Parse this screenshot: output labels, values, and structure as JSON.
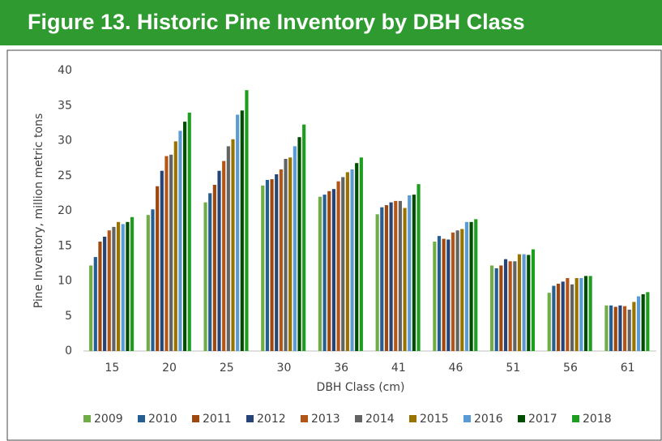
{
  "chart_data": {
    "type": "bar",
    "title": "Figure 13. Historic Pine Inventory by DBH Class",
    "x_label": "DBH Class (cm)",
    "y_label": "Pine Inventory, million metric tons",
    "categories": [
      "15",
      "20",
      "25",
      "30",
      "36",
      "41",
      "46",
      "51",
      "56",
      "61"
    ],
    "ylim": [
      0,
      40
    ],
    "yticks": [
      0,
      5,
      10,
      15,
      20,
      25,
      30,
      35,
      40
    ],
    "grid": false,
    "series": [
      {
        "name": "2009",
        "color": "#70ad47",
        "values": [
          12.2,
          19.4,
          21.2,
          23.6,
          22.0,
          19.5,
          15.6,
          12.2,
          8.3,
          6.5
        ]
      },
      {
        "name": "2010",
        "color": "#255e91",
        "values": [
          13.4,
          20.2,
          22.5,
          24.4,
          22.3,
          20.5,
          16.4,
          11.8,
          9.3,
          6.5
        ]
      },
      {
        "name": "2011",
        "color": "#9e480e",
        "values": [
          15.6,
          23.5,
          23.7,
          24.5,
          22.8,
          20.8,
          16.0,
          12.2,
          9.6,
          6.3
        ]
      },
      {
        "name": "2012",
        "color": "#264478",
        "values": [
          16.3,
          25.7,
          25.7,
          25.2,
          23.1,
          21.2,
          15.9,
          13.1,
          9.9,
          6.5
        ]
      },
      {
        "name": "2013",
        "color": "#b35517",
        "values": [
          17.2,
          27.8,
          27.1,
          25.9,
          24.2,
          21.4,
          16.9,
          12.8,
          10.4,
          6.4
        ]
      },
      {
        "name": "2014",
        "color": "#636363",
        "values": [
          17.7,
          28.0,
          29.2,
          27.4,
          24.8,
          21.4,
          17.2,
          12.8,
          9.5,
          5.9
        ]
      },
      {
        "name": "2015",
        "color": "#997300",
        "values": [
          18.4,
          29.9,
          30.2,
          27.6,
          25.5,
          20.4,
          17.4,
          13.8,
          10.4,
          7.0
        ]
      },
      {
        "name": "2016",
        "color": "#5b9bd5",
        "values": [
          18.1,
          31.4,
          33.7,
          29.2,
          25.9,
          22.2,
          18.4,
          13.8,
          10.4,
          7.8
        ]
      },
      {
        "name": "2017",
        "color": "#004d00",
        "values": [
          18.4,
          32.7,
          34.3,
          30.5,
          26.8,
          22.3,
          18.4,
          13.7,
          10.7,
          8.1
        ]
      },
      {
        "name": "2018",
        "color": "#1e9e1e",
        "values": [
          19.1,
          34.0,
          37.2,
          32.3,
          27.6,
          23.8,
          18.8,
          14.5,
          10.7,
          8.4
        ]
      }
    ]
  }
}
